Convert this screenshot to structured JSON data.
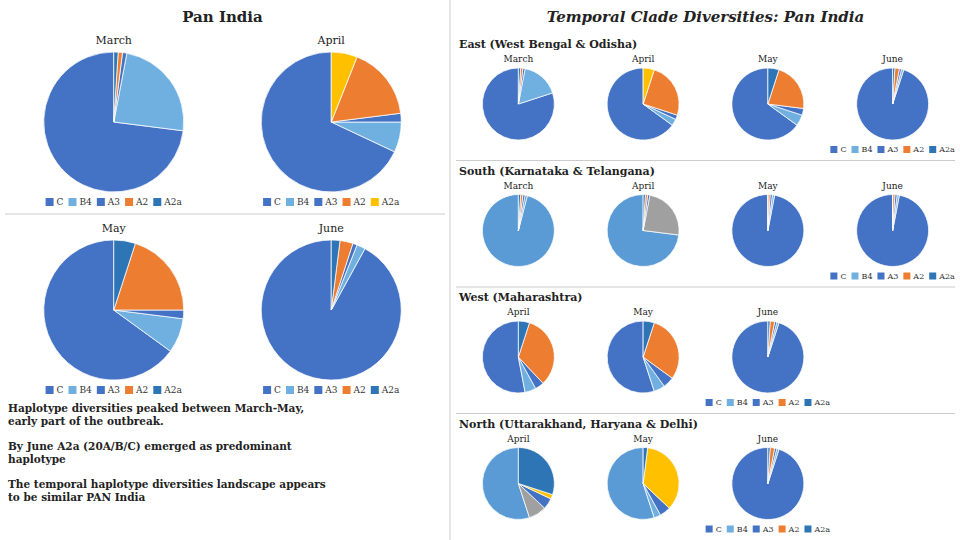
{
  "title": "Temporal Clade Diversities: Pan India",
  "annotations": [
    "Haplotype diversities peaked between March-May,\nearly part of the outbreak.",
    "By June A2a (20A/B/C) emerged as predominant\nhaplotype",
    "The temporal haplotype diversities landscape appears\nto be similar PAN India"
  ],
  "chart_data": [
    {
      "type": "pie",
      "title": "Pan India",
      "categories": [
        "C",
        "B4",
        "A3",
        "A2",
        "A2a"
      ],
      "pies": [
        {
          "title": "March",
          "values": [
            73,
            24,
            1,
            1,
            1
          ],
          "colors": [
            "#4472C4",
            "#70B0E0",
            "#4472C4",
            "#ED7D31",
            "#2E75B6"
          ],
          "legend": "bottom"
        },
        {
          "title": "April",
          "values": [
            68,
            7,
            2,
            17,
            6
          ],
          "colors": [
            "#4472C4",
            "#70B0E0",
            "#4472C4",
            "#ED7D31",
            "#FFC000"
          ],
          "legend": "bottom"
        },
        {
          "title": "May",
          "values": [
            65,
            8,
            2,
            20,
            5
          ],
          "colors": [
            "#4472C4",
            "#70B0E0",
            "#4472C4",
            "#ED7D31",
            "#2E75B6"
          ],
          "legend": "bottom"
        },
        {
          "title": "June",
          "values": [
            92,
            2,
            1,
            3,
            2
          ],
          "colors": [
            "#4472C4",
            "#70B0E0",
            "#4472C4",
            "#ED7D31",
            "#2E75B6"
          ],
          "legend": "bottom"
        }
      ]
    },
    {
      "type": "pie",
      "title": "East (West Bengal & Odisha)",
      "categories": [
        "C",
        "B4",
        "A3",
        "A2",
        "A2a"
      ],
      "pies": [
        {
          "title": "March",
          "values": [
            80,
            17,
            1,
            1,
            1
          ],
          "colors": [
            "#4472C4",
            "#70B0E0",
            "#4472C4",
            "#ED7D31",
            "#2E75B6"
          ]
        },
        {
          "title": "April",
          "values": [
            65,
            3,
            2,
            25,
            5
          ],
          "colors": [
            "#4472C4",
            "#70B0E0",
            "#4472C4",
            "#ED7D31",
            "#FFC000"
          ]
        },
        {
          "title": "May",
          "values": [
            65,
            5,
            3,
            22,
            5
          ],
          "colors": [
            "#4472C4",
            "#70B0E0",
            "#4472C4",
            "#ED7D31",
            "#2E75B6"
          ]
        },
        {
          "title": "June",
          "values": [
            95,
            1,
            1,
            2,
            1
          ],
          "colors": [
            "#4472C4",
            "#70B0E0",
            "#4472C4",
            "#ED7D31",
            "#2E75B6"
          ],
          "legend": "bottom"
        }
      ]
    },
    {
      "type": "pie",
      "title": "South (Karnataka & Telangana)",
      "categories": [
        "C",
        "B4",
        "A3",
        "A2",
        "A2a"
      ],
      "pies": [
        {
          "title": "March",
          "values": [
            96,
            1,
            1,
            1,
            1
          ],
          "colors": [
            "#5B9BD5",
            "#5B9BD5",
            "#4472C4",
            "#ED7D31",
            "#2E75B6"
          ]
        },
        {
          "title": "April",
          "values": [
            73,
            24,
            1,
            1,
            1
          ],
          "colors": [
            "#5B9BD5",
            "#A0A0A0",
            "#4472C4",
            "#ED7D31",
            "#2E75B6"
          ]
        },
        {
          "title": "May",
          "values": [
            97,
            1,
            1,
            1,
            0
          ],
          "colors": [
            "#4472C4",
            "#70B0E0",
            "#4472C4",
            "#ED7D31",
            "#2E75B6"
          ]
        },
        {
          "title": "June",
          "values": [
            97,
            1,
            1,
            1,
            0
          ],
          "colors": [
            "#4472C4",
            "#70B0E0",
            "#4472C4",
            "#ED7D31",
            "#2E75B6"
          ],
          "legend": "bottom"
        }
      ]
    },
    {
      "type": "pie",
      "title": "West (Maharashtra)",
      "categories": [
        "C",
        "B4",
        "A3",
        "A2",
        "A2a"
      ],
      "pies": [
        {
          "title": "April",
          "values": [
            53,
            5,
            4,
            33,
            5
          ],
          "colors": [
            "#4472C4",
            "#70B0E0",
            "#4472C4",
            "#ED7D31",
            "#2E75B6"
          ]
        },
        {
          "title": "May",
          "values": [
            55,
            5,
            5,
            30,
            5
          ],
          "colors": [
            "#4472C4",
            "#70B0E0",
            "#4472C4",
            "#ED7D31",
            "#2E75B6"
          ]
        },
        {
          "title": "June",
          "values": [
            95,
            1,
            1,
            2,
            1
          ],
          "colors": [
            "#4472C4",
            "#70B0E0",
            "#4472C4",
            "#ED7D31",
            "#2E75B6"
          ],
          "legend": "bottom"
        }
      ]
    },
    {
      "type": "pie",
      "title": "North (Uttarakhand, Haryana & Delhi)",
      "categories": [
        "C",
        "B4",
        "A3",
        "A2",
        "A2a"
      ],
      "pies": [
        {
          "title": "April",
          "values": [
            55,
            8,
            5,
            2,
            30
          ],
          "colors": [
            "#5B9BD5",
            "#A0A0A0",
            "#4472C4",
            "#FFC000",
            "#2E75B6"
          ]
        },
        {
          "title": "May",
          "values": [
            55,
            3,
            5,
            35,
            2
          ],
          "colors": [
            "#5B9BD5",
            "#70B0E0",
            "#4472C4",
            "#FFC000",
            "#2E75B6"
          ]
        },
        {
          "title": "June",
          "values": [
            95,
            1,
            1,
            2,
            1
          ],
          "colors": [
            "#4472C4",
            "#70B0E0",
            "#4472C4",
            "#ED7D31",
            "#2E75B6"
          ],
          "legend": "bottom"
        }
      ]
    }
  ]
}
